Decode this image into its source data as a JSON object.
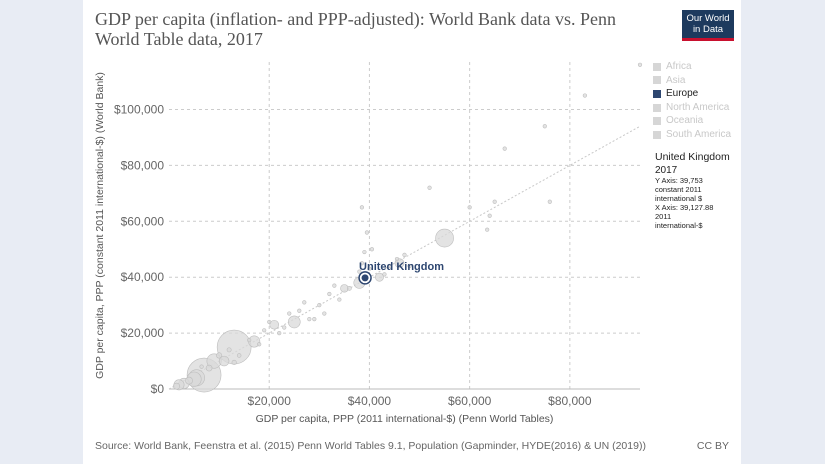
{
  "title": "GDP per capita (inflation- and PPP-adjusted): World Bank data vs. Penn World Table data, 2017",
  "logo": {
    "line1": "Our World",
    "line2": "in Data"
  },
  "legend": [
    {
      "label": "Africa",
      "active": false
    },
    {
      "label": "Asia",
      "active": false
    },
    {
      "label": "Europe",
      "active": true
    },
    {
      "label": "North America",
      "active": false
    },
    {
      "label": "Oceania",
      "active": false
    },
    {
      "label": "South America",
      "active": false
    }
  ],
  "info": {
    "country": "United Kingdom",
    "year": "2017",
    "y_label": "Y Axis: 39,753",
    "y_unit_1": "constant 2011",
    "y_unit_2": "international $",
    "x_label": "X Axis: 39,127.88",
    "x_unit_1": "2011",
    "x_unit_2": "international-$"
  },
  "source": "Source: World Bank, Feenstra et al. (2015) Penn World Tables 9.1, Population (Gapminder, HYDE(2016) & UN (2019))",
  "license": "CC BY",
  "colors": {
    "highlight": "#2d4670",
    "points": "#d9d9d9",
    "point_stroke": "#bdbdbd",
    "grid": "#cccccc"
  },
  "chart_data": {
    "type": "scatter",
    "title": "GDP per capita (inflation- and PPP-adjusted): World Bank data vs. Penn World Table data, 2017",
    "xlabel": "GDP per capita, PPP (2011 international-$) (Penn World Tables)",
    "ylabel": "GDP per capita, PPP (constant 2011 international-$) (World Bank)",
    "xlim": [
      0,
      94000
    ],
    "ylim": [
      0,
      117000
    ],
    "xticks": [
      20000,
      40000,
      60000,
      80000
    ],
    "xtick_labels": [
      "$20,000",
      "$40,000",
      "$60,000",
      "$80,000"
    ],
    "yticks": [
      0,
      20000,
      40000,
      60000,
      80000,
      100000
    ],
    "ytick_labels": [
      "$0",
      "$20,000",
      "$40,000",
      "$60,000",
      "$80,000",
      "$100,000"
    ],
    "reference_line": "y = x",
    "highlight": {
      "name": "United Kingdom",
      "x": 39128,
      "y": 39753
    },
    "points": [
      {
        "x": 7000,
        "y": 5000,
        "pop": 1386
      },
      {
        "x": 13000,
        "y": 15000,
        "pop": 1339
      },
      {
        "x": 55000,
        "y": 54000,
        "pop": 325
      },
      {
        "x": 5500,
        "y": 4000,
        "pop": 264
      },
      {
        "x": 5000,
        "y": 3500,
        "pop": 208
      },
      {
        "x": 9000,
        "y": 10000,
        "pop": 209
      },
      {
        "x": 25000,
        "y": 24000,
        "pop": 144
      },
      {
        "x": 17000,
        "y": 17000,
        "pop": 129
      },
      {
        "x": 38000,
        "y": 38000,
        "pop": 127
      },
      {
        "x": 46000,
        "y": 45000,
        "pop": 83
      },
      {
        "x": 42000,
        "y": 40000,
        "pop": 67
      },
      {
        "x": 35000,
        "y": 36000,
        "pop": 60
      },
      {
        "x": 21000,
        "y": 23000,
        "pop": 80
      },
      {
        "x": 11000,
        "y": 10000,
        "pop": 97
      },
      {
        "x": 3000,
        "y": 2000,
        "pop": 110
      },
      {
        "x": 2000,
        "y": 1500,
        "pop": 105
      },
      {
        "x": 4000,
        "y": 3000,
        "pop": 50
      },
      {
        "x": 1500,
        "y": 1000,
        "pop": 40
      },
      {
        "x": 8000,
        "y": 7500,
        "pop": 36
      },
      {
        "x": 10000,
        "y": 12000,
        "pop": 30
      },
      {
        "x": 13000,
        "y": 9500,
        "pop": 20
      },
      {
        "x": 20000,
        "y": 24000,
        "pop": 12
      },
      {
        "x": 22000,
        "y": 20000,
        "pop": 10
      },
      {
        "x": 26000,
        "y": 28000,
        "pop": 8
      },
      {
        "x": 27000,
        "y": 31000,
        "pop": 5
      },
      {
        "x": 30000,
        "y": 30000,
        "pop": 10
      },
      {
        "x": 32000,
        "y": 34000,
        "pop": 4
      },
      {
        "x": 33000,
        "y": 37000,
        "pop": 9
      },
      {
        "x": 29000,
        "y": 25000,
        "pop": 6
      },
      {
        "x": 31000,
        "y": 27000,
        "pop": 3
      },
      {
        "x": 24000,
        "y": 27000,
        "pop": 11
      },
      {
        "x": 36000,
        "y": 36000,
        "pop": 17
      },
      {
        "x": 38500,
        "y": 45000,
        "pop": 6
      },
      {
        "x": 40000,
        "y": 43000,
        "pop": 6
      },
      {
        "x": 43000,
        "y": 41000,
        "pop": 11
      },
      {
        "x": 44000,
        "y": 44000,
        "pop": 5
      },
      {
        "x": 45500,
        "y": 46500,
        "pop": 9
      },
      {
        "x": 47000,
        "y": 48000,
        "pop": 5
      },
      {
        "x": 48000,
        "y": 44000,
        "pop": 8
      },
      {
        "x": 38000,
        "y": 42000,
        "pop": 6
      },
      {
        "x": 39500,
        "y": 56000,
        "pop": 5
      },
      {
        "x": 38500,
        "y": 65000,
        "pop": 4
      },
      {
        "x": 39000,
        "y": 49000,
        "pop": 3
      },
      {
        "x": 40500,
        "y": 50000,
        "pop": 4
      },
      {
        "x": 52000,
        "y": 72000,
        "pop": 4
      },
      {
        "x": 60000,
        "y": 65000,
        "pop": 5
      },
      {
        "x": 63500,
        "y": 57000,
        "pop": 3
      },
      {
        "x": 64000,
        "y": 62000,
        "pop": 5
      },
      {
        "x": 65000,
        "y": 67000,
        "pop": 4
      },
      {
        "x": 67000,
        "y": 86000,
        "pop": 3
      },
      {
        "x": 75000,
        "y": 94000,
        "pop": 3
      },
      {
        "x": 76000,
        "y": 67000,
        "pop": 2
      },
      {
        "x": 83000,
        "y": 105000,
        "pop": 1
      },
      {
        "x": 94000,
        "y": 116000,
        "pop": 1
      },
      {
        "x": 14000,
        "y": 12000,
        "pop": 15
      },
      {
        "x": 16000,
        "y": 17500,
        "pop": 7
      },
      {
        "x": 18000,
        "y": 16000,
        "pop": 10
      },
      {
        "x": 6500,
        "y": 8000,
        "pop": 12
      },
      {
        "x": 12000,
        "y": 14000,
        "pop": 18
      },
      {
        "x": 19000,
        "y": 21000,
        "pop": 6
      },
      {
        "x": 23000,
        "y": 22000,
        "pop": 8
      },
      {
        "x": 28000,
        "y": 25000,
        "pop": 5
      },
      {
        "x": 34000,
        "y": 32000,
        "pop": 4
      }
    ]
  }
}
